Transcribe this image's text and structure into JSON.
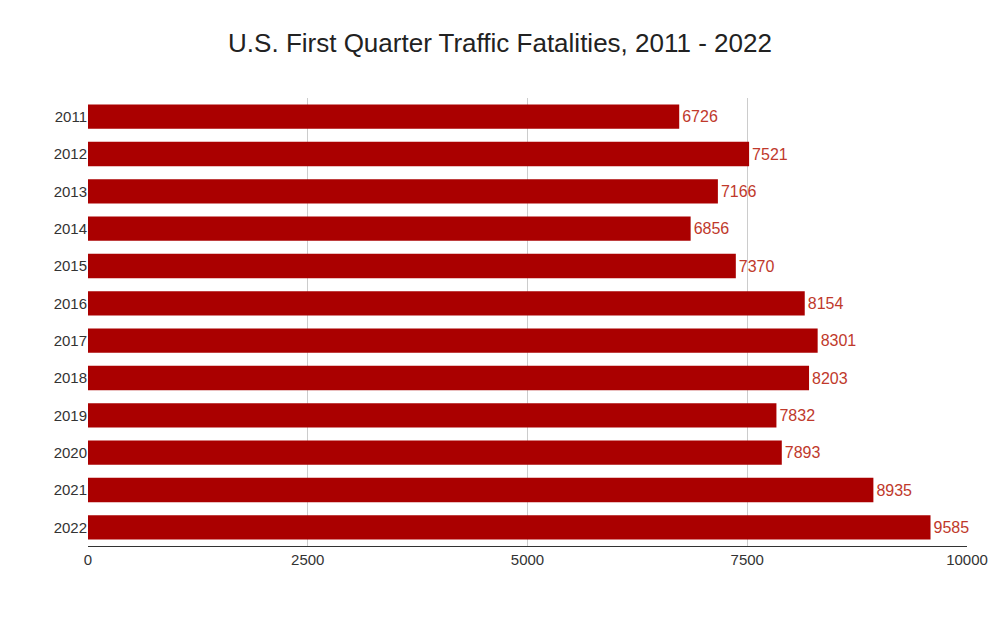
{
  "chart_data": {
    "type": "bar",
    "orientation": "horizontal",
    "title": "U.S. First Quarter Traffic Fatalities, 2011 - 2022",
    "categories": [
      "2011",
      "2012",
      "2013",
      "2014",
      "2015",
      "2016",
      "2017",
      "2018",
      "2019",
      "2020",
      "2021",
      "2022"
    ],
    "values": [
      6726,
      7521,
      7166,
      6856,
      7370,
      8154,
      8301,
      8203,
      7832,
      7893,
      8935,
      9585
    ],
    "color": "#aa0000",
    "xlim": [
      0,
      10000
    ],
    "xticks": [
      0,
      2500,
      5000,
      7500,
      10000
    ],
    "grid": true,
    "data_labels": true
  }
}
